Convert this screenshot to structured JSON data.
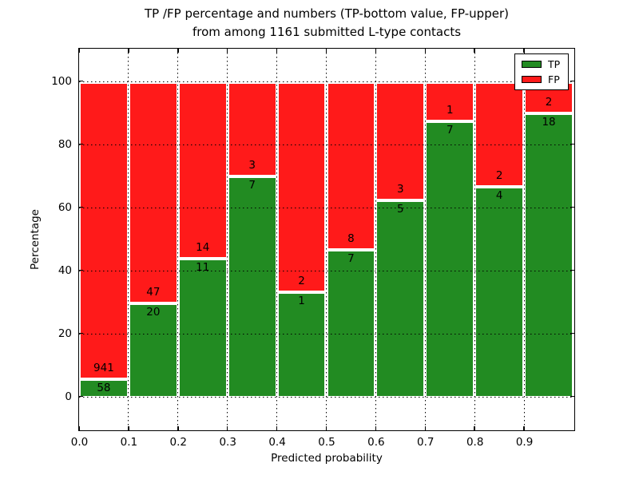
{
  "chart_data": {
    "type": "bar",
    "stacked": true,
    "normalized_to_percent": true,
    "title_lines": [
      "TP /FP percentage and numbers (TP-bottom value, FP-upper)",
      "from among 1161 submitted L-type contacts"
    ],
    "xlabel": "Predicted probability",
    "ylabel": "Percentage",
    "x_tick_labels": [
      "0.0",
      "0.1",
      "0.2",
      "0.3",
      "0.4",
      "0.5",
      "0.6",
      "0.7",
      "0.8",
      "0.9"
    ],
    "y_ticks": [
      0,
      20,
      40,
      60,
      80,
      100
    ],
    "xlim": [
      0.0,
      1.0
    ],
    "ylim": [
      -10.9,
      110.1
    ],
    "bin_width": 0.1,
    "grid": "dotted",
    "legend_position": "upper right",
    "total_submitted_contacts": 1161,
    "series": [
      {
        "name": "TP",
        "color": "#228b22",
        "counts": [
          58,
          20,
          11,
          7,
          1,
          7,
          5,
          7,
          4,
          18
        ],
        "percent": [
          5.81,
          29.85,
          44.0,
          70.0,
          33.33,
          46.67,
          62.5,
          87.5,
          66.67,
          90.0
        ]
      },
      {
        "name": "FP",
        "color": "#ff1a1a",
        "counts": [
          941,
          47,
          14,
          3,
          2,
          8,
          3,
          1,
          2,
          2
        ],
        "percent": [
          94.19,
          70.15,
          56.0,
          30.0,
          66.67,
          53.33,
          37.5,
          12.5,
          33.33,
          10.0
        ]
      }
    ]
  }
}
